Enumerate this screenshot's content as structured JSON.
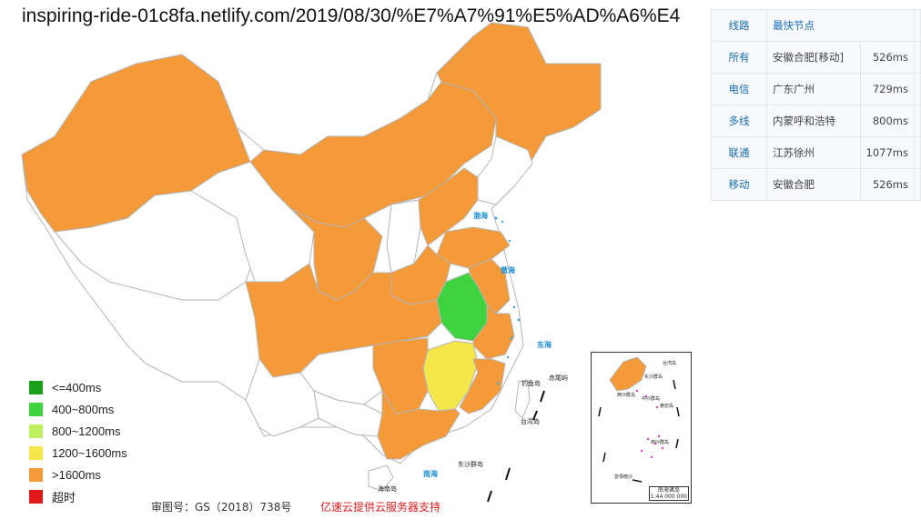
{
  "header": {
    "url_title": "inspiring-ride-01c8fa.netlify.com/2019/08/30/%E7%A7%91%E5%AD%A6%E4"
  },
  "map": {
    "sea_labels": [
      "渤海",
      "黄海",
      "东海",
      "南海",
      "南海"
    ],
    "island_labels": [
      "台湾岛",
      "钓鱼岛",
      "赤尾屿",
      "东沙群岛",
      "海南岛"
    ],
    "inset": {
      "labels": [
        "台湾岛",
        "东沙群岛",
        "西沙群岛",
        "中沙群岛",
        "黄岩岛",
        "南沙群岛",
        "曾母暗沙"
      ],
      "caption_line1": "南海诸岛",
      "caption_line2": "1:44 000 000"
    },
    "colors": {
      "fast": "#1aa01a",
      "good": "#3fd33f",
      "medium": "#bff060",
      "slow": "#f5e64a",
      "slowest": "#f59a38",
      "timeout": "#e01818",
      "no_data": "#ffffff",
      "border": "#b5b5b5"
    }
  },
  "legend": {
    "items": [
      {
        "label": "<=400ms",
        "color": "#1aa01a"
      },
      {
        "label": "400~800ms",
        "color": "#3fd33f"
      },
      {
        "label": "800~1200ms",
        "color": "#bff060"
      },
      {
        "label": "1200~1600ms",
        "color": "#f5e64a"
      },
      {
        "label": ">1600ms",
        "color": "#f59a38"
      },
      {
        "label": "超时",
        "color": "#e01818"
      }
    ]
  },
  "footer": {
    "map_approval": "审图号：GS（2018）738号",
    "sponsor": "亿速云提供云服务器支持"
  },
  "results": {
    "headers": {
      "line": "线路",
      "node": "最快节点"
    },
    "rows": [
      {
        "line": "所有",
        "node": "安徽合肥[移动]",
        "ms": "526ms"
      },
      {
        "line": "电信",
        "node": "广东广州",
        "ms": "729ms"
      },
      {
        "line": "多线",
        "node": "内蒙呼和浩特",
        "ms": "800ms"
      },
      {
        "line": "联通",
        "node": "江苏徐州",
        "ms": "1077ms"
      },
      {
        "line": "移动",
        "node": "安徽合肥",
        "ms": "526ms"
      }
    ]
  }
}
